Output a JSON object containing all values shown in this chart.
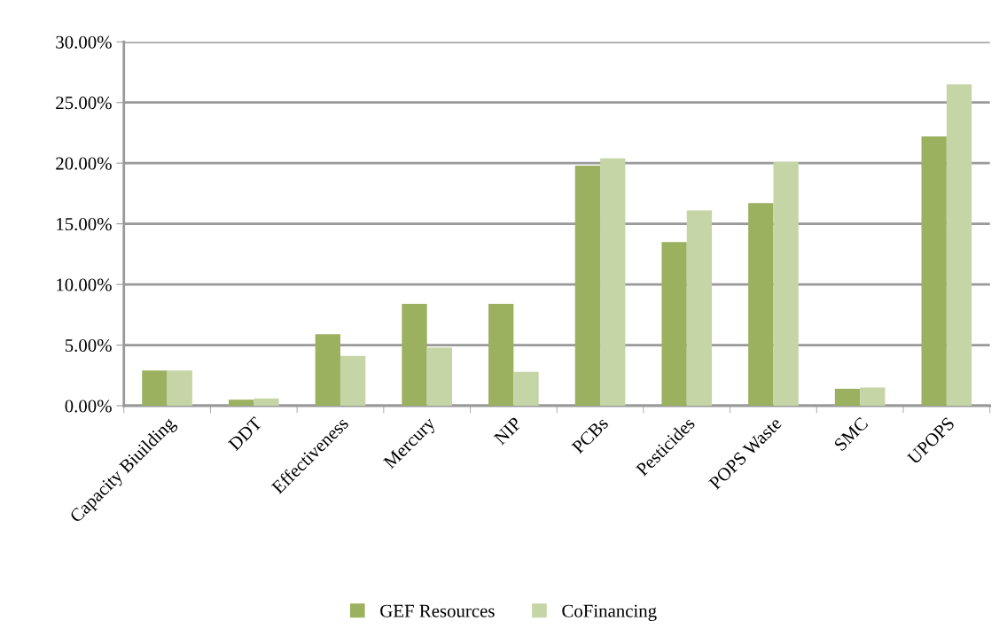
{
  "chart_data": {
    "type": "bar",
    "categories": [
      "Capacity Biuilding",
      "DDT",
      "Effectiveness",
      "Mercury",
      "NIP",
      "PCBs",
      "Pesticides",
      "POPS Waste",
      "SMC",
      "UPOPS"
    ],
    "series": [
      {
        "name": "GEF Resources",
        "color": "#9bb160",
        "values": [
          2.9,
          0.5,
          5.9,
          8.4,
          8.4,
          19.8,
          13.5,
          16.7,
          1.4,
          22.2
        ]
      },
      {
        "name": "CoFinancing",
        "color": "#c6d5a6",
        "values": [
          2.9,
          0.6,
          4.1,
          4.8,
          2.8,
          20.4,
          16.1,
          20.1,
          1.5,
          26.5
        ]
      }
    ],
    "ylim": [
      0,
      30
    ],
    "yticks": [
      {
        "value": 0,
        "label": "0.00%"
      },
      {
        "value": 5,
        "label": "5.00%"
      },
      {
        "value": 10,
        "label": "10.00%"
      },
      {
        "value": 15,
        "label": "15.00%"
      },
      {
        "value": 20,
        "label": "20.00%"
      },
      {
        "value": 25,
        "label": "25.00%"
      },
      {
        "value": 30,
        "label": "30.00%"
      }
    ],
    "grid": "y",
    "legend": "bottom"
  }
}
